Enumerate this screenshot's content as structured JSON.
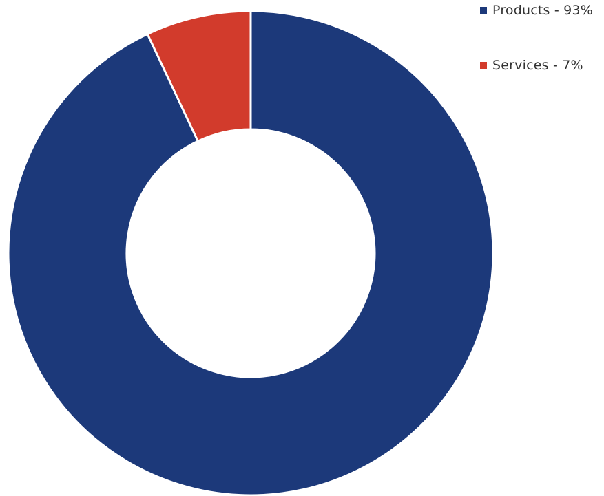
{
  "chart_data": {
    "type": "pie",
    "donut": true,
    "categories": [
      "Products",
      "Services"
    ],
    "values": [
      93,
      7
    ],
    "colors": [
      "#1c397a",
      "#d23b2c"
    ],
    "legend_position": "top-right",
    "legend_labels": [
      "Products - 93%",
      "Services - 7%"
    ]
  }
}
